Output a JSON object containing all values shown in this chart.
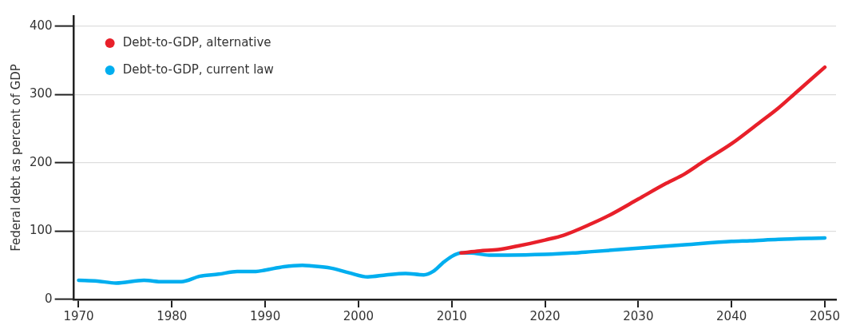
{
  "chart_data": {
    "type": "line",
    "ylabel": "Federal debt as percent of GDP",
    "xlim": [
      1969.5,
      2051.2
    ],
    "xticks": [
      1970,
      1980,
      1990,
      2000,
      2010,
      2020,
      2030,
      2040,
      2050
    ],
    "ylim": [
      0,
      415
    ],
    "yticks": [
      0,
      100,
      200,
      300,
      400
    ],
    "grid": "y",
    "legend": "top left",
    "marker": "none",
    "line_style": "solid",
    "series": [
      {
        "name": "Debt-to-GDP, alternative",
        "color": "#e8202a",
        "x": [
          2011,
          2013,
          2015,
          2017,
          2020,
          2022,
          2025,
          2027,
          2030,
          2033,
          2035,
          2037,
          2040,
          2043,
          2045,
          2047,
          2050
        ],
        "values": [
          68,
          71,
          73,
          78,
          87,
          94,
          111,
          124,
          147,
          170,
          184,
          202,
          228,
          259,
          280,
          304,
          340
        ]
      },
      {
        "name": "Debt-to-GDP, current law",
        "color": "#00aeef",
        "x": [
          1970,
          1972,
          1974,
          1977,
          1979,
          1981,
          1983,
          1985,
          1987,
          1989,
          1990,
          1992,
          1994,
          1995,
          1997,
          1999,
          2001,
          2003,
          2005,
          2007,
          2008,
          2009,
          2010,
          2011,
          2012,
          2014,
          2016,
          2020,
          2023,
          2025,
          2030,
          2035,
          2040,
          2042,
          2045,
          2050
        ],
        "values": [
          28,
          27,
          24,
          28,
          26,
          26,
          34,
          37,
          41,
          41,
          43,
          48,
          50,
          49,
          46,
          39,
          33,
          36,
          38,
          36,
          41,
          53,
          63,
          68,
          68,
          65,
          65,
          66,
          68,
          70,
          75,
          80,
          85,
          86,
          88,
          90
        ]
      }
    ]
  }
}
